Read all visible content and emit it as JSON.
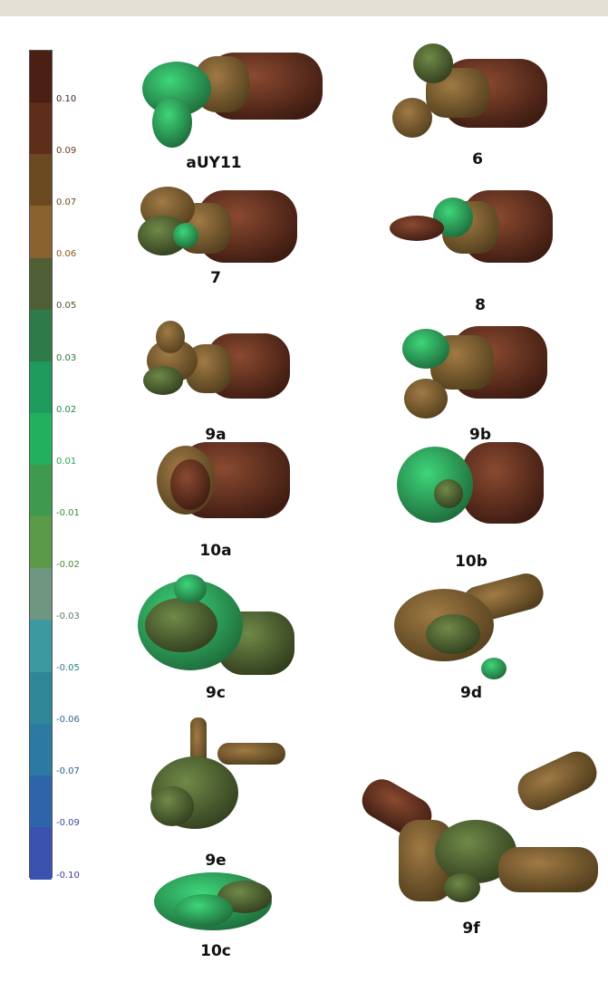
{
  "colorbar": {
    "ticks": [
      {
        "label": "0.10",
        "color": "#3b2a22"
      },
      {
        "label": "0.09",
        "color": "#6b3a20"
      },
      {
        "label": "0.07",
        "color": "#6b4a20"
      },
      {
        "label": "0.06",
        "color": "#8a5a1c"
      },
      {
        "label": "0.05",
        "color": "#4a5a2a"
      },
      {
        "label": "0.03",
        "color": "#2f7a3a"
      },
      {
        "label": "0.02",
        "color": "#1a8a4a"
      },
      {
        "label": "0.01",
        "color": "#1ea84e"
      },
      {
        "label": "-0.01",
        "color": "#3a8a3a"
      },
      {
        "label": "-0.02",
        "color": "#4a8a2a"
      },
      {
        "label": "-0.03",
        "color": "#5a7a6a"
      },
      {
        "label": "-0.05",
        "color": "#2a7a8a"
      },
      {
        "label": "-0.06",
        "color": "#2a6a8a"
      },
      {
        "label": "-0.07",
        "color": "#2a5a8a"
      },
      {
        "label": "-0.09",
        "color": "#3a4a9a"
      },
      {
        "label": "-0.10",
        "color": "#3a3a9a"
      }
    ],
    "segments": [
      "#4a1f14",
      "#5e2e1a",
      "#6b4a22",
      "#8a6230",
      "#4f5e34",
      "#2e7a48",
      "#1e9a5c",
      "#22b05c",
      "#3f9a4e",
      "#5a9a48",
      "#6f9680",
      "#3a9aa0",
      "#2e8696",
      "#2c7aa4",
      "#2e64aa",
      "#3a52ae"
    ],
    "colors": {
      "brown_dark": "#5a2a1c",
      "brown_mid": "#7a5a30",
      "green": "#3fae5a",
      "olive": "#5a6a3a"
    }
  },
  "molecules": [
    {
      "id": "aUY11",
      "label": "aUY11"
    },
    {
      "id": "6",
      "label": "6"
    },
    {
      "id": "7",
      "label": "7"
    },
    {
      "id": "8",
      "label": "8"
    },
    {
      "id": "9a",
      "label": "9a"
    },
    {
      "id": "9b",
      "label": "9b"
    },
    {
      "id": "10a",
      "label": "10a"
    },
    {
      "id": "10b",
      "label": "10b"
    },
    {
      "id": "9c",
      "label": "9c"
    },
    {
      "id": "9d",
      "label": "9d"
    },
    {
      "id": "9e",
      "label": "9e"
    },
    {
      "id": "9f",
      "label": "9f"
    },
    {
      "id": "10c",
      "label": "10c"
    }
  ]
}
